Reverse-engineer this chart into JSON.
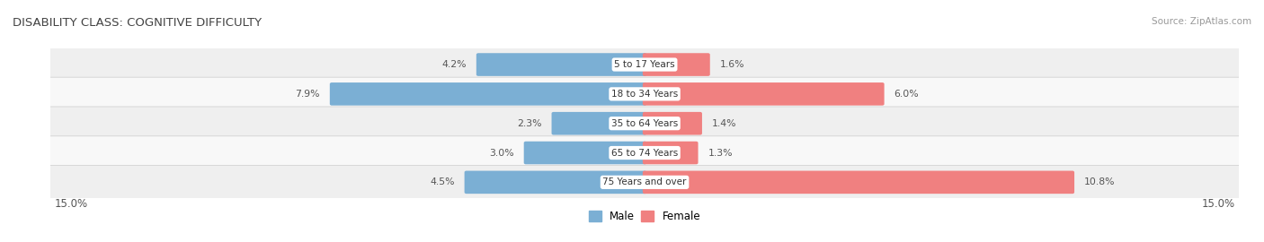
{
  "title": "DISABILITY CLASS: COGNITIVE DIFFICULTY",
  "source_text": "Source: ZipAtlas.com",
  "categories": [
    "5 to 17 Years",
    "18 to 34 Years",
    "35 to 64 Years",
    "65 to 74 Years",
    "75 Years and over"
  ],
  "male_values": [
    4.2,
    7.9,
    2.3,
    3.0,
    4.5
  ],
  "female_values": [
    1.6,
    6.0,
    1.4,
    1.3,
    10.8
  ],
  "max_val": 15.0,
  "male_color": "#7bafd4",
  "female_color": "#f08080",
  "male_light_color": "#a8c8e8",
  "female_light_color": "#f4a0b8",
  "male_label": "Male",
  "female_label": "Female",
  "row_bg_odd": "#efefef",
  "row_bg_even": "#f8f8f8",
  "axis_label_left": "15.0%",
  "axis_label_right": "15.0%",
  "title_fontsize": 9.5,
  "label_fontsize": 7.8,
  "tick_fontsize": 8.5
}
